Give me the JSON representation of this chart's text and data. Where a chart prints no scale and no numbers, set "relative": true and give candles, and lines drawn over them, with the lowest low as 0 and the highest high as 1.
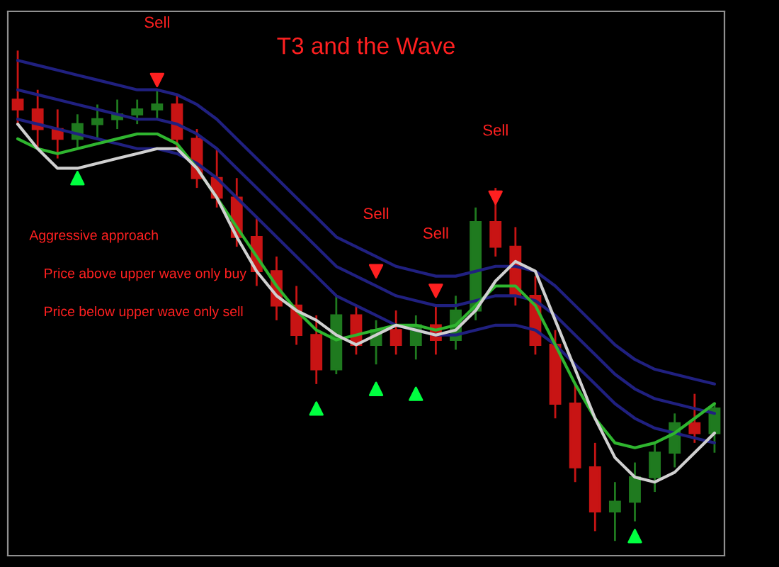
{
  "chart_data": {
    "type": "candlestick",
    "relative": true,
    "title": "T3 and the Wave",
    "annotations": [
      "Aggressive approach",
      "Price above upper wave only buy",
      "Price below upper wave only sell"
    ],
    "categories": [
      null,
      null,
      null,
      null,
      null,
      null,
      null,
      null,
      null,
      null,
      null,
      null,
      null,
      null,
      null,
      null,
      null,
      null,
      null,
      null,
      null,
      null,
      null,
      null,
      null,
      null,
      null,
      null,
      null,
      null,
      null,
      null,
      null,
      null,
      null,
      null
    ],
    "ohlc": [
      [
        0.9,
        1.0,
        0.85,
        0.88
      ],
      [
        0.88,
        0.92,
        0.8,
        0.84
      ],
      [
        0.84,
        0.88,
        0.78,
        0.82
      ],
      [
        0.82,
        0.87,
        0.8,
        0.85
      ],
      [
        0.85,
        0.89,
        0.82,
        0.86
      ],
      [
        0.86,
        0.9,
        0.84,
        0.87
      ],
      [
        0.87,
        0.9,
        0.85,
        0.88
      ],
      [
        0.88,
        0.92,
        0.86,
        0.89
      ],
      [
        0.89,
        0.91,
        0.8,
        0.82
      ],
      [
        0.82,
        0.84,
        0.72,
        0.74
      ],
      [
        0.74,
        0.8,
        0.68,
        0.7
      ],
      [
        0.7,
        0.74,
        0.6,
        0.62
      ],
      [
        0.62,
        0.66,
        0.52,
        0.55
      ],
      [
        0.55,
        0.58,
        0.45,
        0.48
      ],
      [
        0.48,
        0.52,
        0.4,
        0.42
      ],
      [
        0.42,
        0.46,
        0.32,
        0.35
      ],
      [
        0.35,
        0.5,
        0.34,
        0.46
      ],
      [
        0.46,
        0.48,
        0.38,
        0.4
      ],
      [
        0.4,
        0.45,
        0.36,
        0.43
      ],
      [
        0.43,
        0.47,
        0.38,
        0.4
      ],
      [
        0.4,
        0.46,
        0.37,
        0.44
      ],
      [
        0.44,
        0.48,
        0.38,
        0.41
      ],
      [
        0.41,
        0.5,
        0.39,
        0.47
      ],
      [
        0.47,
        0.68,
        0.45,
        0.65
      ],
      [
        0.65,
        0.72,
        0.58,
        0.6
      ],
      [
        0.6,
        0.64,
        0.48,
        0.5
      ],
      [
        0.5,
        0.54,
        0.38,
        0.4
      ],
      [
        0.4,
        0.43,
        0.25,
        0.28
      ],
      [
        0.28,
        0.32,
        0.12,
        0.15
      ],
      [
        0.15,
        0.2,
        0.02,
        0.06
      ],
      [
        0.06,
        0.12,
        0.0,
        0.08
      ],
      [
        0.08,
        0.16,
        0.04,
        0.13
      ],
      [
        0.13,
        0.2,
        0.1,
        0.18
      ],
      [
        0.18,
        0.26,
        0.15,
        0.24
      ],
      [
        0.24,
        0.3,
        0.2,
        0.22
      ],
      [
        0.22,
        0.28,
        0.18,
        0.27
      ]
    ],
    "colors": [
      "#c81414",
      "#c81414",
      "#c81414",
      "#1f7a1f",
      "#1f7a1f",
      "#1f7a1f",
      "#1f7a1f",
      "#1f7a1f",
      "#c81414",
      "#c81414",
      "#c81414",
      "#c81414",
      "#c81414",
      "#c81414",
      "#c81414",
      "#c81414",
      "#1f7a1f",
      "#c81414",
      "#1f7a1f",
      "#c81414",
      "#1f7a1f",
      "#c81414",
      "#1f7a1f",
      "#1f7a1f",
      "#c81414",
      "#c81414",
      "#c81414",
      "#c81414",
      "#c81414",
      "#c81414",
      "#1f7a1f",
      "#1f7a1f",
      "#1f7a1f",
      "#1f7a1f",
      "#c81414",
      "#1f7a1f"
    ],
    "series": [
      {
        "type": "line",
        "color": "#202080",
        "values": [
          0.98,
          0.97,
          0.96,
          0.95,
          0.94,
          0.93,
          0.92,
          0.92,
          0.91,
          0.89,
          0.86,
          0.82,
          0.78,
          0.74,
          0.7,
          0.66,
          0.62,
          0.6,
          0.58,
          0.56,
          0.55,
          0.54,
          0.54,
          0.55,
          0.56,
          0.56,
          0.55,
          0.52,
          0.48,
          0.44,
          0.4,
          0.37,
          0.35,
          0.34,
          0.33,
          0.32
        ]
      },
      {
        "type": "line",
        "color": "#202080",
        "values": [
          0.92,
          0.91,
          0.9,
          0.89,
          0.88,
          0.87,
          0.86,
          0.86,
          0.85,
          0.83,
          0.8,
          0.76,
          0.72,
          0.68,
          0.64,
          0.6,
          0.56,
          0.54,
          0.52,
          0.5,
          0.49,
          0.48,
          0.48,
          0.49,
          0.5,
          0.5,
          0.49,
          0.46,
          0.42,
          0.38,
          0.34,
          0.31,
          0.29,
          0.28,
          0.27,
          0.26
        ]
      },
      {
        "type": "line",
        "color": "#202080",
        "values": [
          0.86,
          0.85,
          0.84,
          0.83,
          0.82,
          0.81,
          0.8,
          0.8,
          0.79,
          0.77,
          0.74,
          0.7,
          0.66,
          0.62,
          0.58,
          0.54,
          0.5,
          0.48,
          0.46,
          0.44,
          0.43,
          0.42,
          0.42,
          0.43,
          0.44,
          0.44,
          0.43,
          0.4,
          0.36,
          0.32,
          0.28,
          0.25,
          0.23,
          0.22,
          0.21,
          0.2
        ]
      },
      {
        "type": "line",
        "color": "#2fb52f",
        "values": [
          0.82,
          0.8,
          0.79,
          0.8,
          0.81,
          0.82,
          0.83,
          0.83,
          0.81,
          0.76,
          0.7,
          0.64,
          0.58,
          0.52,
          0.47,
          0.43,
          0.41,
          0.42,
          0.43,
          0.44,
          0.44,
          0.43,
          0.44,
          0.48,
          0.52,
          0.52,
          0.48,
          0.4,
          0.32,
          0.25,
          0.2,
          0.19,
          0.2,
          0.22,
          0.25,
          0.28
        ]
      },
      {
        "type": "line",
        "color": "#d0d0d0",
        "values": [
          0.85,
          0.8,
          0.76,
          0.76,
          0.77,
          0.78,
          0.79,
          0.8,
          0.8,
          0.76,
          0.7,
          0.62,
          0.55,
          0.5,
          0.47,
          0.45,
          0.42,
          0.4,
          0.42,
          0.44,
          0.43,
          0.42,
          0.43,
          0.47,
          0.53,
          0.57,
          0.55,
          0.45,
          0.35,
          0.25,
          0.17,
          0.13,
          0.12,
          0.14,
          0.18,
          0.22
        ]
      },
      {
        "type": "scatter",
        "marker": "triangle_up",
        "color": "#00ff40",
        "values": [
          null,
          null,
          null,
          0.74,
          null,
          null,
          null,
          null,
          null,
          null,
          null,
          null,
          null,
          null,
          null,
          0.27,
          null,
          null,
          0.31,
          null,
          0.3,
          null,
          null,
          null,
          null,
          null,
          null,
          null,
          null,
          null,
          null,
          0.01,
          null,
          null,
          null,
          null
        ]
      },
      {
        "type": "scatter",
        "marker": "triangle_down",
        "color": "#ff2020",
        "values": [
          null,
          null,
          null,
          null,
          null,
          null,
          null,
          0.94,
          null,
          null,
          null,
          null,
          null,
          null,
          null,
          null,
          null,
          null,
          0.55,
          null,
          null,
          0.51,
          null,
          null,
          0.7,
          null,
          null,
          null,
          null,
          null,
          null,
          null,
          null,
          null,
          null,
          null
        ]
      }
    ],
    "value_labels": [
      null,
      null,
      null,
      null,
      null,
      null,
      null,
      "Sell",
      null,
      null,
      null,
      null,
      null,
      null,
      null,
      null,
      null,
      null,
      "Sell",
      null,
      null,
      "Sell",
      null,
      null,
      "Sell",
      null,
      null,
      null,
      null,
      null,
      null,
      null,
      null,
      null,
      null,
      null
    ]
  }
}
